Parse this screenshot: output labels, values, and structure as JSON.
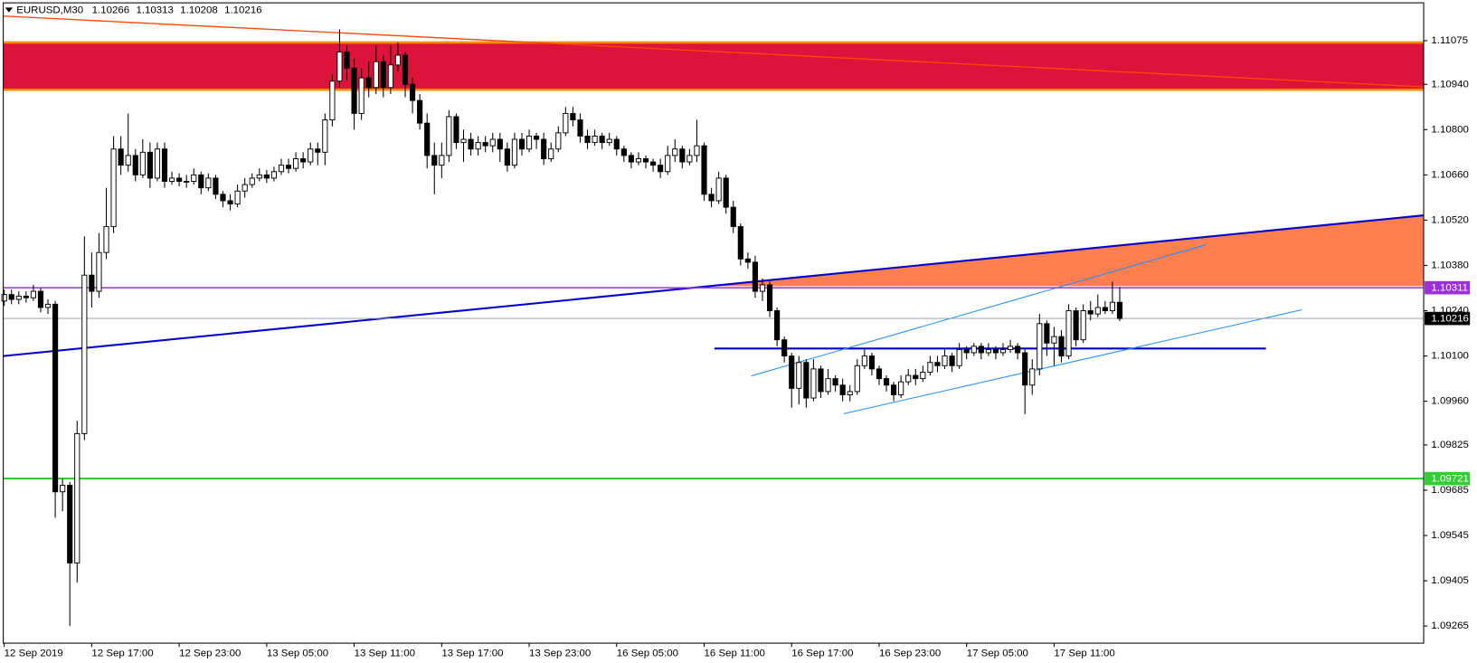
{
  "chart_data": {
    "type": "candlestick",
    "title": "EURUSD,M30",
    "ylim": [
      1.09212,
      1.11192
    ],
    "yticks": [
      1.11075,
      {
        "value": 1.1094,
        "label": "1.10940"
      },
      {
        "value": 1.108,
        "label": "1.10800"
      },
      {
        "value": 1.1066,
        "label": "1.10660"
      },
      {
        "value": 1.1052,
        "label": "1.10520"
      },
      {
        "value": 1.1038,
        "label": "1.10380"
      },
      {
        "value": 1.1024,
        "label": "1.10240"
      },
      {
        "value": 1.101,
        "label": "1.10100"
      },
      {
        "value": 1.0996,
        "label": "1.09960"
      },
      1.09825,
      1.09685,
      1.09545,
      1.09405,
      1.09265
    ],
    "bull_color": "#ffffff",
    "bear_color": "#000000",
    "levels": [
      {
        "value": 1.10311,
        "color": "#9b30d9"
      },
      {
        "value": 1.09721,
        "color": "#32cd32"
      }
    ],
    "categories": [
      "12 Sep 2019",
      null,
      null,
      null,
      null,
      null,
      null,
      null,
      null,
      null,
      null,
      null,
      "12 Sep 17:00",
      null,
      null,
      null,
      null,
      null,
      null,
      null,
      null,
      null,
      null,
      null,
      "12 Sep 23:00",
      null,
      null,
      null,
      null,
      null,
      null,
      null,
      null,
      null,
      null,
      null,
      "13 Sep 05:00",
      null,
      null,
      null,
      null,
      null,
      null,
      null,
      null,
      null,
      null,
      null,
      "13 Sep 11:00",
      null,
      null,
      null,
      null,
      null,
      null,
      null,
      null,
      null,
      null,
      null,
      "13 Sep 17:00",
      null,
      null,
      null,
      null,
      null,
      null,
      null,
      null,
      null,
      null,
      null,
      "13 Sep 23:00",
      null,
      null,
      null,
      null,
      null,
      null,
      null,
      null,
      null,
      null,
      null,
      "16 Sep 05:00",
      null,
      null,
      null,
      null,
      null,
      null,
      null,
      null,
      null,
      null,
      null,
      "16 Sep 11:00",
      null,
      null,
      null,
      null,
      null,
      null,
      null,
      null,
      null,
      null,
      null,
      "16 Sep 17:00",
      null,
      null,
      null,
      null,
      null,
      null,
      null,
      null,
      null,
      null,
      null,
      "16 Sep 23:00",
      null,
      null,
      null,
      null,
      null,
      null,
      null,
      null,
      null,
      null,
      null,
      "17 Sep 05:00",
      null,
      null,
      null,
      null,
      null,
      null,
      null,
      null,
      null,
      null,
      null,
      "17 Sep 11:00",
      null,
      null,
      null,
      null,
      null,
      null,
      null,
      null,
      null
    ],
    "open": [
      1.1027,
      1.1029,
      1.10275,
      1.10285,
      1.1028,
      1.103,
      1.1025,
      1.1026,
      1.0968,
      1.097,
      1.0946,
      1.0986,
      1.1035,
      1.103,
      1.1042,
      1.105,
      1.1074,
      1.1069,
      1.1072,
      1.1066,
      1.1073,
      1.1065,
      1.1074,
      1.1064,
      1.1065,
      1.1064,
      1.1064,
      1.1066,
      1.1062,
      1.1065,
      1.106,
      1.1058,
      1.1057,
      1.1061,
      1.1063,
      1.1065,
      1.1066,
      1.1065,
      1.1067,
      1.1069,
      1.1068,
      1.1071,
      1.107,
      1.1074,
      1.1073,
      1.1083,
      1.1095,
      1.1104,
      1.1099,
      1.1085,
      1.1096,
      1.1093,
      1.1101,
      1.1093,
      1.11,
      1.1103,
      1.1094,
      1.1089,
      1.1082,
      1.1072,
      1.1069,
      1.1072,
      1.1084,
      1.1076,
      1.1077,
      1.1074,
      1.1076,
      1.1075,
      1.1077,
      1.1074,
      1.1069,
      1.1077,
      1.1074,
      1.1078,
      1.1077,
      1.1071,
      1.1074,
      1.1079,
      1.1085,
      1.1083,
      1.1078,
      1.1076,
      1.1078,
      1.1076,
      1.1077,
      1.1074,
      1.1072,
      1.107,
      1.1071,
      1.107,
      1.1069,
      1.1067,
      1.1072,
      1.1074,
      1.107,
      1.1072,
      1.1075,
      1.106,
      1.1058,
      1.1065,
      1.1056,
      1.105,
      1.104,
      1.1039,
      1.103,
      1.1032,
      1.1024,
      1.1015,
      1.101,
      1.1,
      1.1008,
      1.0997,
      1.1006,
      1.0999,
      1.1003,
      1.1001,
      1.0998,
      1.0999,
      1.1007,
      1.101,
      1.1006,
      1.1003,
      1.1001,
      1.0998,
      1.1002,
      1.1004,
      1.1003,
      1.1005,
      1.1008,
      1.1007,
      1.101,
      1.1007,
      1.1012,
      1.1011,
      1.1013,
      1.1011,
      1.1012,
      1.1011,
      1.1012,
      1.1013,
      1.1011,
      1.1001,
      1.1006,
      1.102,
      1.1014,
      1.1016,
      1.101,
      1.1024,
      1.1015,
      1.1024,
      1.1023,
      1.1025,
      1.1024,
      1.10266
    ],
    "high": [
      1.10305,
      1.10305,
      1.103,
      1.103,
      1.1032,
      1.1031,
      1.10275,
      1.1027,
      1.0972,
      1.0971,
      1.099,
      1.1047,
      1.1042,
      1.1048,
      1.1062,
      1.1078,
      1.1078,
      1.1085,
      1.1074,
      1.1077,
      1.1076,
      1.1076,
      1.1076,
      1.1067,
      1.10665,
      1.1066,
      1.1068,
      1.1067,
      1.10665,
      1.1066,
      1.1061,
      1.106,
      1.1063,
      1.1065,
      1.10665,
      1.1068,
      1.10675,
      1.10685,
      1.1071,
      1.1071,
      1.1073,
      1.1073,
      1.1076,
      1.1076,
      1.1085,
      1.1097,
      1.1111,
      1.1106,
      1.1102,
      1.1099,
      1.1101,
      1.1106,
      1.1103,
      1.1106,
      1.1107,
      1.1104,
      1.1096,
      1.1091,
      1.1085,
      1.1076,
      1.1076,
      1.1086,
      1.1085,
      1.108,
      1.1079,
      1.1078,
      1.1078,
      1.1079,
      1.1079,
      1.1076,
      1.1079,
      1.1079,
      1.108,
      1.1079,
      1.1079,
      1.1076,
      1.1081,
      1.1087,
      1.1087,
      1.1085,
      1.108,
      1.108,
      1.1079,
      1.1079,
      1.1078,
      1.1075,
      1.1073,
      1.1073,
      1.1072,
      1.1071,
      1.1071,
      1.1075,
      1.1077,
      1.1075,
      1.1074,
      1.1083,
      1.1076,
      1.1062,
      1.1067,
      1.1066,
      1.1058,
      1.1051,
      1.1042,
      1.1041,
      1.1034,
      1.1033,
      1.1025,
      1.1016,
      1.1011,
      1.101,
      1.1009,
      1.1009,
      1.1007,
      1.1006,
      1.1004,
      1.1003,
      1.1001,
      1.1009,
      1.1012,
      1.1011,
      1.1007,
      1.1004,
      1.1002,
      1.1004,
      1.1006,
      1.1006,
      1.1007,
      1.101,
      1.101,
      1.1012,
      1.1011,
      1.1014,
      1.1013,
      1.1014,
      1.1014,
      1.1014,
      1.1013,
      1.1014,
      1.1015,
      1.1014,
      1.1012,
      1.1009,
      1.1023,
      1.1021,
      1.1019,
      1.1018,
      1.1026,
      1.1025,
      1.1026,
      1.1027,
      1.1029,
      1.1027,
      1.1033,
      1.10313
    ],
    "low": [
      1.10255,
      1.1026,
      1.1026,
      1.10265,
      1.1027,
      1.10235,
      1.1023,
      1.096,
      1.0962,
      1.09265,
      1.094,
      1.0984,
      1.1025,
      1.1028,
      1.104,
      1.1048,
      1.1066,
      1.1067,
      1.1064,
      1.1065,
      1.1062,
      1.1064,
      1.1062,
      1.1063,
      1.10625,
      1.1062,
      1.1063,
      1.106,
      1.1061,
      1.10585,
      1.1056,
      1.1055,
      1.1056,
      1.1059,
      1.1062,
      1.1064,
      1.10635,
      1.1064,
      1.1066,
      1.10665,
      1.1067,
      1.1068,
      1.1069,
      1.1069,
      1.1069,
      1.1081,
      1.1093,
      1.1095,
      1.108,
      1.1083,
      1.109,
      1.1091,
      1.109,
      1.1091,
      1.1098,
      1.109,
      1.1085,
      1.108,
      1.1068,
      1.106,
      1.1065,
      1.107,
      1.1074,
      1.107,
      1.1072,
      1.1072,
      1.1073,
      1.1073,
      1.107,
      1.1067,
      1.1068,
      1.1072,
      1.1073,
      1.1074,
      1.1069,
      1.107,
      1.1073,
      1.1078,
      1.1081,
      1.1076,
      1.1074,
      1.1075,
      1.1074,
      1.1075,
      1.1072,
      1.107,
      1.1068,
      1.1069,
      1.1068,
      1.1067,
      1.1065,
      1.1066,
      1.107,
      1.1068,
      1.1069,
      1.107,
      1.1058,
      1.1056,
      1.1057,
      1.1054,
      1.1048,
      1.1038,
      1.1037,
      1.1028,
      1.1027,
      1.1022,
      1.1013,
      1.1008,
      1.0994,
      1.0995,
      1.0994,
      1.0996,
      1.0997,
      1.0998,
      1.0999,
      1.0996,
      1.0996,
      1.0998,
      1.1006,
      1.1004,
      1.1001,
      1.0999,
      1.0996,
      1.0997,
      1.1001,
      1.1001,
      1.1002,
      1.1004,
      1.1005,
      1.1006,
      1.1005,
      1.1006,
      1.1009,
      1.101,
      1.1009,
      1.101,
      1.1009,
      1.101,
      1.1011,
      1.1009,
      1.0992,
      1.0998,
      1.1004,
      1.101,
      1.1007,
      1.1008,
      1.1009,
      1.1013,
      1.1014,
      1.1021,
      1.1022,
      1.1023,
      1.1023,
      1.10208
    ],
    "close": [
      1.1029,
      1.10275,
      1.10285,
      1.1028,
      1.103,
      1.1025,
      1.1026,
      1.0968,
      1.097,
      1.0946,
      1.0986,
      1.1035,
      1.103,
      1.1042,
      1.105,
      1.1074,
      1.1069,
      1.1072,
      1.1066,
      1.1073,
      1.1065,
      1.1074,
      1.1064,
      1.1065,
      1.1064,
      1.1064,
      1.1066,
      1.1062,
      1.1065,
      1.106,
      1.1058,
      1.1057,
      1.1061,
      1.1063,
      1.1065,
      1.1066,
      1.1065,
      1.1067,
      1.1069,
      1.1068,
      1.1071,
      1.107,
      1.1074,
      1.1073,
      1.1083,
      1.1095,
      1.1104,
      1.1099,
      1.1085,
      1.1096,
      1.1093,
      1.1101,
      1.1093,
      1.11,
      1.1103,
      1.1094,
      1.1089,
      1.1082,
      1.1072,
      1.1069,
      1.1072,
      1.1084,
      1.1076,
      1.1077,
      1.1074,
      1.1076,
      1.1075,
      1.1077,
      1.1074,
      1.1069,
      1.1077,
      1.1074,
      1.1078,
      1.1077,
      1.1071,
      1.1074,
      1.1079,
      1.1085,
      1.1083,
      1.1078,
      1.1076,
      1.1078,
      1.1076,
      1.1077,
      1.1074,
      1.1072,
      1.107,
      1.1071,
      1.107,
      1.1069,
      1.1067,
      1.1072,
      1.1074,
      1.107,
      1.1072,
      1.1075,
      1.106,
      1.1058,
      1.1065,
      1.1056,
      1.105,
      1.104,
      1.1039,
      1.103,
      1.1032,
      1.1024,
      1.1015,
      1.101,
      1.1,
      1.1008,
      1.0997,
      1.1006,
      1.0999,
      1.1003,
      1.1001,
      1.0998,
      1.0999,
      1.1007,
      1.101,
      1.1006,
      1.1003,
      1.1001,
      1.0998,
      1.1002,
      1.1004,
      1.1003,
      1.1005,
      1.1008,
      1.1007,
      1.101,
      1.1007,
      1.1012,
      1.1011,
      1.1013,
      1.1011,
      1.1012,
      1.1011,
      1.1012,
      1.1013,
      1.1011,
      1.1001,
      1.1006,
      1.102,
      1.1014,
      1.1016,
      1.101,
      1.1024,
      1.1015,
      1.1024,
      1.1023,
      1.1025,
      1.1024,
      1.10266,
      1.10216
    ]
  }
}
